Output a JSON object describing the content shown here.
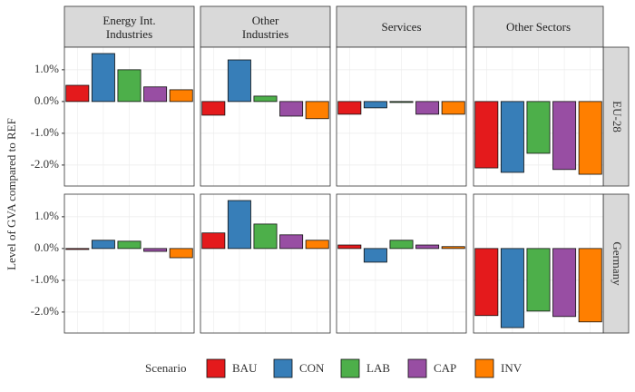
{
  "chart_data": {
    "type": "bar",
    "ylabel": "Level of GVA compared to REF",
    "legend_title": "Scenario",
    "columns": [
      "Energy Int.\nIndustries",
      "Other\nIndustries",
      "Services",
      "Other Sectors"
    ],
    "rows": [
      "EU-28",
      "Germany"
    ],
    "ylim": [
      -2.66,
      1.71
    ],
    "yticks": [
      {
        "value": -2,
        "label": "-2.0%"
      },
      {
        "value": -1,
        "label": "-1.0%"
      },
      {
        "value": 0,
        "label": "0.0%"
      },
      {
        "value": 1,
        "label": "1.0%"
      }
    ],
    "grid": true,
    "legend": "bottom",
    "series": [
      {
        "name": "BAU",
        "color": "#e41a1c",
        "values": [
          [
            0.51,
            -0.43,
            -0.4,
            -2.09
          ],
          [
            -0.03,
            0.49,
            0.11,
            -2.11
          ]
        ]
      },
      {
        "name": "CON",
        "color": "#377eb8",
        "values": [
          [
            1.51,
            1.31,
            -0.2,
            -2.23
          ],
          [
            0.26,
            1.51,
            -0.43,
            -2.49
          ]
        ]
      },
      {
        "name": "LAB",
        "color": "#4daf4a",
        "values": [
          [
            1.0,
            0.17,
            -0.03,
            -1.63
          ],
          [
            0.23,
            0.77,
            0.26,
            -1.97
          ]
        ]
      },
      {
        "name": "CAP",
        "color": "#984ea3",
        "values": [
          [
            0.46,
            -0.46,
            -0.4,
            -2.14
          ],
          [
            -0.09,
            0.43,
            0.11,
            -2.14
          ]
        ]
      },
      {
        "name": "INV",
        "color": "#ff7f00",
        "values": [
          [
            0.37,
            -0.54,
            -0.4,
            -2.29
          ],
          [
            -0.29,
            0.26,
            0.06,
            -2.31
          ]
        ]
      }
    ]
  }
}
